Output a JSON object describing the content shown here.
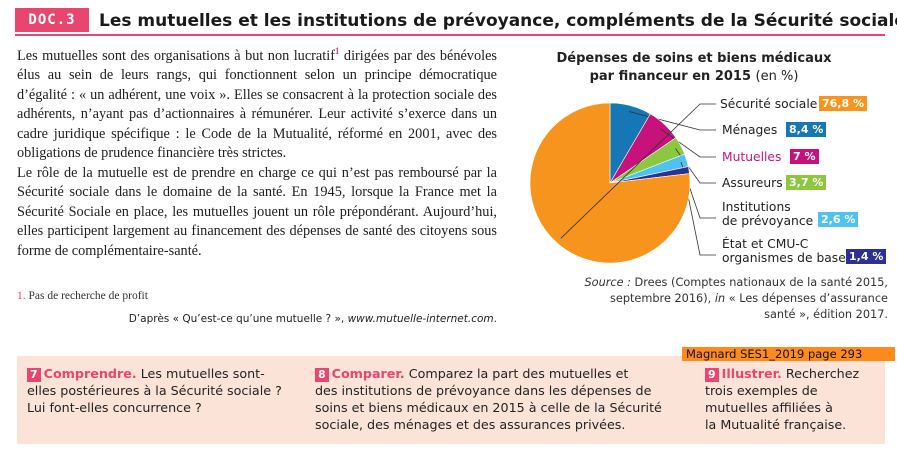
{
  "header": {
    "badge": "DOC.3",
    "title": "Les mutuelles et les institutions de prévoyance, compléments de la Sécurité sociale"
  },
  "text": {
    "p1_before": "Les mutuelles sont des organisations à but non lucratif",
    "p1_sup": "1",
    "p1_after": " dirigées par des bénévoles élus au sein de leurs rangs, qui fonctionnent selon un principe démocratique d’égalité : « un adhérent, une voix ». Elles se consacrent à la protection sociale des adhérents, n’ayant pas d’actionnaires à rémunérer. Leur activité s’exerce dans un cadre juridique spécifique : le Code de la Mutualité, réformé en 2001, avec des obligations de prudence financière très strictes.",
    "p2": "Le rôle de la mutuelle est de prendre en charge ce qui n’est pas remboursé par la Sécurité sociale dans le domaine de la santé. En 1945, lorsque la France met la Sécurité Sociale en place, les mutuelles jouent un rôle prépondérant. Aujourd’hui, elles participent largement au financement des dépenses de santé des citoyens sous forme de complémentaire-santé.",
    "footnote_num": "1.",
    "footnote_text": " Pas de recherche de profit",
    "source_prefix": "D’après « Qu’est-ce qu’une mutuelle ? », ",
    "source_site": "www.mutuelle-internet.com",
    "source_suffix": "."
  },
  "chart_data": {
    "type": "pie",
    "title": "Dépenses de soins et biens médicaux par financeur en 2015",
    "title_line1": "Dépenses de soins et biens médicaux",
    "title_line2": "par financeur en 2015",
    "unit": "(en %)",
    "slices": [
      {
        "label": "Sécurité sociale",
        "value": 76.8,
        "value_label": "76,8 %",
        "color": "#f7941d"
      },
      {
        "label": "Ménages",
        "value": 8.4,
        "value_label": "8,4 %",
        "color": "#1577b5"
      },
      {
        "label": "Mutuelles",
        "value": 7,
        "value_label": "7 %",
        "color": "#c8127b"
      },
      {
        "label": "Assureurs",
        "value": 3.7,
        "value_label": "3,7 %",
        "color": "#8dc63f"
      },
      {
        "label_line1": "Institutions",
        "label_line2": "de prévoyance",
        "label": "Institutions de prévoyance",
        "value": 2.6,
        "value_label": "2,6 %",
        "color": "#4fc3ef"
      },
      {
        "label_line1": "État et CMU-C",
        "label_line2": "organismes de base",
        "label": "État et CMU-C organismes de base",
        "value": 1.4,
        "value_label": "1,4 %",
        "color": "#2e3192"
      }
    ],
    "source_label": "Source :",
    "source_line1": " Drees (Comptes nationaux de la santé 2015,",
    "source_line2a": "septembre 2016), ",
    "source_in": "in",
    "source_line2b": " « Les dépenses d’assurance",
    "source_line3": "santé », édition 2017."
  },
  "banner": "Magnard SES1_2019 page 293",
  "questions": [
    {
      "num": "7",
      "head": "Comprendre.",
      "line1": " Les mutuelles sont-",
      "line2": "elles postérieures à la Sécurité sociale ?",
      "line3": "Lui font-elles concurrence ?"
    },
    {
      "num": "8",
      "head": "Comparer.",
      "line1": " Comparez la part des mutuelles et",
      "line2": "des institutions de prévoyance dans les dépenses de",
      "line3": "soins et biens médicaux en 2015 à celle de la Sécurité",
      "line4": "sociale, des ménages et des assurances privées."
    },
    {
      "num": "9",
      "head": "Illustrer.",
      "line1": " Recherchez",
      "line2": "trois exemples de",
      "line3": "mutuelles affiliées à",
      "line4": "la Mutualité française."
    }
  ],
  "colors": {
    "accent": "#e8456f",
    "banner": "#ff8a1c",
    "box": "#fbe4d7"
  }
}
